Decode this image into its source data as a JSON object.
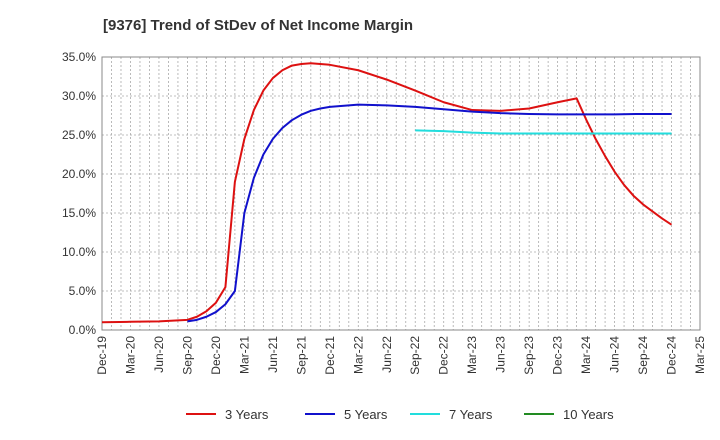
{
  "chart_data": {
    "type": "line",
    "title": "[9376]  Trend of StDev of Net Income Margin",
    "xlabel": "",
    "ylabel": "",
    "x_ticks": [
      "Dec-19",
      "Mar-20",
      "Jun-20",
      "Sep-20",
      "Dec-20",
      "Mar-21",
      "Jun-21",
      "Sep-21",
      "Dec-21",
      "Mar-22",
      "Jun-22",
      "Sep-22",
      "Dec-22",
      "Mar-23",
      "Jun-23",
      "Sep-23",
      "Dec-23",
      "Mar-24",
      "Jun-24",
      "Sep-24",
      "Dec-24",
      "Mar-25"
    ],
    "y_ticks": [
      "0.0%",
      "5.0%",
      "10.0%",
      "15.0%",
      "20.0%",
      "25.0%",
      "30.0%",
      "35.0%"
    ],
    "ylim": [
      0,
      35
    ],
    "grid": true,
    "legend_placement": "bottom",
    "series": [
      {
        "name": "3 Years",
        "color": "#dd1111",
        "x": [
          "Dec-19",
          "Mar-20",
          "Jun-20",
          "Sep-20",
          "Oct-20",
          "Nov-20",
          "Dec-20",
          "Jan-21",
          "Feb-21",
          "Mar-21",
          "Apr-21",
          "May-21",
          "Jun-21",
          "Jul-21",
          "Aug-21",
          "Sep-21",
          "Oct-21",
          "Nov-21",
          "Dec-21",
          "Mar-22",
          "Jun-22",
          "Sep-22",
          "Dec-22",
          "Mar-23",
          "Jun-23",
          "Sep-23",
          "Dec-23",
          "Feb-24",
          "Mar-24",
          "Apr-24",
          "May-24",
          "Jun-24",
          "Jul-24",
          "Aug-24",
          "Sep-24",
          "Oct-24",
          "Nov-24",
          "Dec-24"
        ],
        "values": [
          1.0,
          1.05,
          1.1,
          1.3,
          1.7,
          2.4,
          3.5,
          5.5,
          19.0,
          24.5,
          28.2,
          30.7,
          32.3,
          33.3,
          33.9,
          34.1,
          34.2,
          34.1,
          34.0,
          33.3,
          32.1,
          30.7,
          29.2,
          28.2,
          28.1,
          28.4,
          29.2,
          29.7,
          27.0,
          24.5,
          22.3,
          20.3,
          18.6,
          17.2,
          16.1,
          15.2,
          14.3,
          13.5
        ]
      },
      {
        "name": "5 Years",
        "color": "#1111cc",
        "x": [
          "Sep-20",
          "Oct-20",
          "Nov-20",
          "Dec-20",
          "Jan-21",
          "Feb-21",
          "Mar-21",
          "Apr-21",
          "May-21",
          "Jun-21",
          "Jul-21",
          "Aug-21",
          "Sep-21",
          "Oct-21",
          "Nov-21",
          "Dec-21",
          "Mar-22",
          "Jun-22",
          "Sep-22",
          "Dec-22",
          "Mar-23",
          "Jun-23",
          "Sep-23",
          "Dec-23",
          "Mar-24",
          "Jun-24",
          "Sep-24",
          "Dec-24"
        ],
        "values": [
          1.1,
          1.3,
          1.7,
          2.3,
          3.3,
          5.0,
          15.0,
          19.5,
          22.5,
          24.5,
          25.9,
          26.9,
          27.6,
          28.1,
          28.4,
          28.6,
          28.9,
          28.8,
          28.6,
          28.3,
          28.0,
          27.8,
          27.7,
          27.65,
          27.65,
          27.65,
          27.7,
          27.7
        ]
      },
      {
        "name": "7 Years",
        "color": "#22dddd",
        "x": [
          "Sep-22",
          "Dec-22",
          "Mar-23",
          "Jun-23",
          "Sep-23",
          "Dec-23",
          "Mar-24",
          "Jun-24",
          "Sep-24",
          "Dec-24"
        ],
        "values": [
          25.6,
          25.5,
          25.3,
          25.2,
          25.2,
          25.2,
          25.2,
          25.2,
          25.2,
          25.2
        ]
      },
      {
        "name": "10 Years",
        "color": "#228b22",
        "x": [],
        "values": []
      }
    ]
  }
}
